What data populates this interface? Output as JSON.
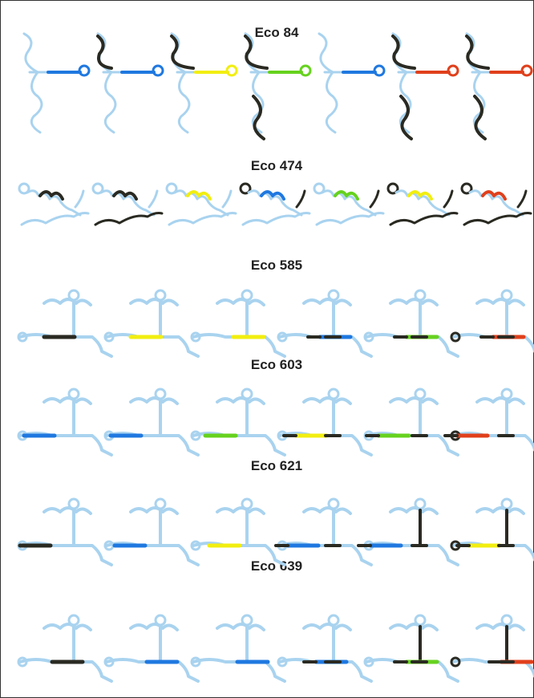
{
  "panels": [
    {
      "title": "Eco 84"
    },
    {
      "title": "Eco 474"
    },
    {
      "title": "Eco 585"
    },
    {
      "title": "Eco 603"
    },
    {
      "title": "Eco 621"
    },
    {
      "title": "Eco 639"
    }
  ]
}
